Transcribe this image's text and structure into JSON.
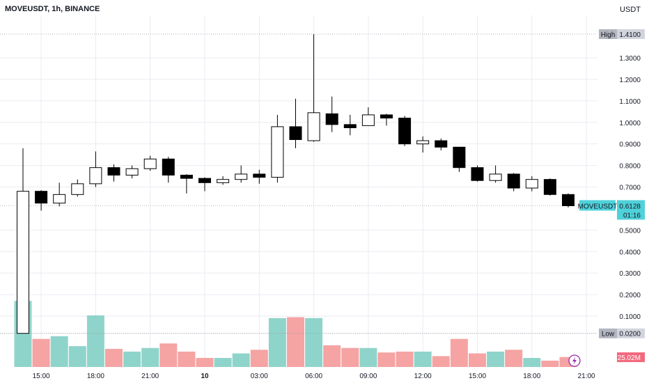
{
  "header": {
    "title": "MOVEUSDT, 1h, BINANCE",
    "currency": "USDT"
  },
  "colors": {
    "up_body": "#ffffff",
    "down_body": "#000000",
    "wick": "#000000",
    "vol_up": "#8fd4cb",
    "vol_down": "#f5a3a3",
    "grid": "#e9ebf0",
    "price_tag": "#4fd1d9",
    "volume_tag": "#f26a7e",
    "hi_lo_tag": "#b2b5be"
  },
  "chart_data": {
    "type": "candlestick",
    "symbol": "MOVEUSDT",
    "interval": "1h",
    "exchange": "BINANCE",
    "y_ticks": [
      "1.3000",
      "1.2000",
      "1.1000",
      "1.0000",
      "0.9000",
      "0.8000",
      "0.7000",
      "0.5000",
      "0.4000",
      "0.3000",
      "0.2000",
      "0.1000",
      "0.0200"
    ],
    "x_ticks": [
      {
        "label": "15:00",
        "index": 1
      },
      {
        "label": "18:00",
        "index": 4
      },
      {
        "label": "21:00",
        "index": 7
      },
      {
        "label": "10",
        "index": 10,
        "bold": true
      },
      {
        "label": "03:00",
        "index": 13
      },
      {
        "label": "06:00",
        "index": 16
      },
      {
        "label": "09:00",
        "index": 19
      },
      {
        "label": "12:00",
        "index": 22
      },
      {
        "label": "15:00",
        "index": 25
      },
      {
        "label": "18:00",
        "index": 28
      },
      {
        "label": "21:00",
        "index": 31
      }
    ],
    "candles": [
      {
        "o": 0.02,
        "h": 0.88,
        "l": 0.02,
        "c": 0.68
      },
      {
        "o": 0.68,
        "h": 0.685,
        "l": 0.59,
        "c": 0.625
      },
      {
        "o": 0.625,
        "h": 0.72,
        "l": 0.61,
        "c": 0.665
      },
      {
        "o": 0.665,
        "h": 0.735,
        "l": 0.655,
        "c": 0.715
      },
      {
        "o": 0.715,
        "h": 0.865,
        "l": 0.7,
        "c": 0.79
      },
      {
        "o": 0.79,
        "h": 0.805,
        "l": 0.725,
        "c": 0.755
      },
      {
        "o": 0.755,
        "h": 0.8,
        "l": 0.74,
        "c": 0.785
      },
      {
        "o": 0.785,
        "h": 0.845,
        "l": 0.775,
        "c": 0.83
      },
      {
        "o": 0.83,
        "h": 0.84,
        "l": 0.72,
        "c": 0.755
      },
      {
        "o": 0.755,
        "h": 0.76,
        "l": 0.67,
        "c": 0.74
      },
      {
        "o": 0.74,
        "h": 0.745,
        "l": 0.68,
        "c": 0.72
      },
      {
        "o": 0.72,
        "h": 0.75,
        "l": 0.71,
        "c": 0.735
      },
      {
        "o": 0.735,
        "h": 0.8,
        "l": 0.72,
        "c": 0.76
      },
      {
        "o": 0.76,
        "h": 0.78,
        "l": 0.715,
        "c": 0.745
      },
      {
        "o": 0.745,
        "h": 1.035,
        "l": 0.72,
        "c": 0.98
      },
      {
        "o": 0.98,
        "h": 1.11,
        "l": 0.88,
        "c": 0.92
      },
      {
        "o": 0.915,
        "h": 1.41,
        "l": 0.91,
        "c": 1.045
      },
      {
        "o": 1.04,
        "h": 1.12,
        "l": 0.955,
        "c": 0.99
      },
      {
        "o": 0.99,
        "h": 1.035,
        "l": 0.94,
        "c": 0.975
      },
      {
        "o": 0.985,
        "h": 1.07,
        "l": 0.985,
        "c": 1.035
      },
      {
        "o": 1.035,
        "h": 1.04,
        "l": 0.985,
        "c": 1.02
      },
      {
        "o": 1.02,
        "h": 1.03,
        "l": 0.89,
        "c": 0.9
      },
      {
        "o": 0.9,
        "h": 0.935,
        "l": 0.86,
        "c": 0.915
      },
      {
        "o": 0.915,
        "h": 0.925,
        "l": 0.87,
        "c": 0.885
      },
      {
        "o": 0.885,
        "h": 0.885,
        "l": 0.77,
        "c": 0.79
      },
      {
        "o": 0.79,
        "h": 0.8,
        "l": 0.725,
        "c": 0.73
      },
      {
        "o": 0.73,
        "h": 0.8,
        "l": 0.72,
        "c": 0.76
      },
      {
        "o": 0.76,
        "h": 0.765,
        "l": 0.68,
        "c": 0.695
      },
      {
        "o": 0.695,
        "h": 0.75,
        "l": 0.68,
        "c": 0.735
      },
      {
        "o": 0.735,
        "h": 0.74,
        "l": 0.66,
        "c": 0.665
      },
      {
        "o": 0.665,
        "h": 0.67,
        "l": 0.605,
        "c": 0.6128
      }
    ],
    "volume_height_pct": [
      0.73,
      0.31,
      0.34,
      0.23,
      0.57,
      0.2,
      0.17,
      0.21,
      0.26,
      0.17,
      0.1,
      0.1,
      0.15,
      0.19,
      0.54,
      0.55,
      0.54,
      0.24,
      0.21,
      0.21,
      0.16,
      0.17,
      0.17,
      0.12,
      0.31,
      0.15,
      0.17,
      0.19,
      0.1,
      0.07,
      0.11
    ],
    "high_label": "High",
    "high_value": "1.4100",
    "low_label": "Low",
    "low_value": "0.0200",
    "last_price_symbol": "MOVEUSDT",
    "last_price": "0.6128",
    "countdown": "01:16",
    "volume_value": "25.02M",
    "partial_volume_label": "0.1000"
  }
}
